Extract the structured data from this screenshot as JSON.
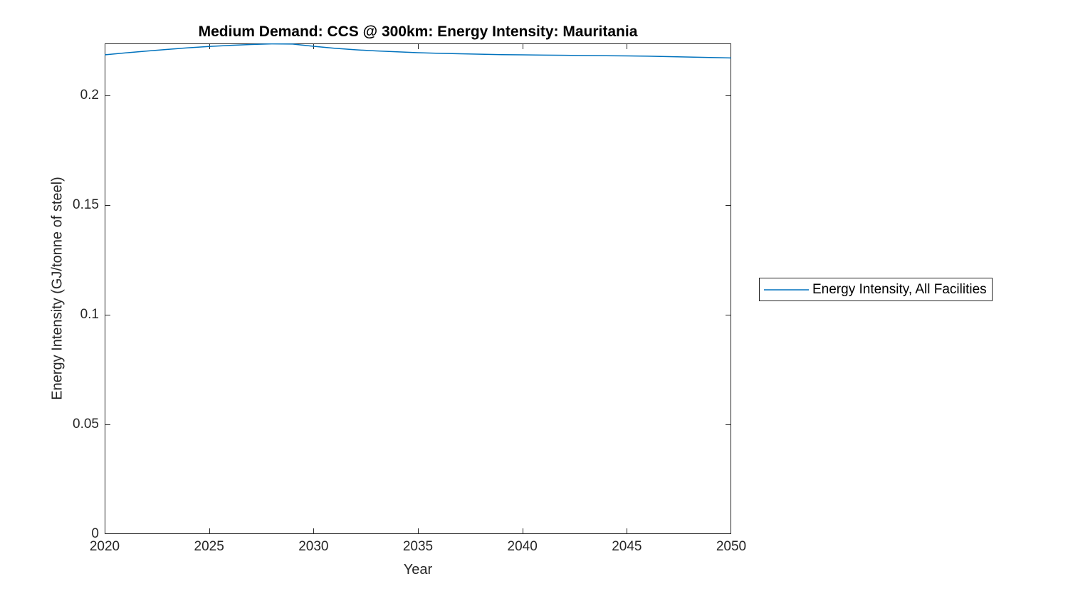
{
  "figure": {
    "background": "#ffffff",
    "axis_color": "#262626",
    "title_color": "#000000"
  },
  "chart_data": {
    "type": "line",
    "title": "Medium Demand: CCS @ 300km: Energy Intensity: Mauritania",
    "xlabel": "Year",
    "ylabel": "Energy Intensity (GJ/tonne of steel)",
    "xlim": [
      2020,
      2050
    ],
    "ylim": [
      0,
      0.2237
    ],
    "grid": false,
    "x_ticks": [
      2020,
      2025,
      2030,
      2035,
      2040,
      2045,
      2050
    ],
    "x_tick_labels": [
      "2020",
      "2025",
      "2030",
      "2035",
      "2040",
      "2045",
      "2050"
    ],
    "y_ticks": [
      0,
      0.05,
      0.1,
      0.15,
      0.2
    ],
    "y_tick_labels": [
      "0",
      "0.05",
      "0.1",
      "0.15",
      "0.2"
    ],
    "legend": {
      "position": "right-outside",
      "entries": [
        "Energy Intensity, All Facilities"
      ]
    },
    "series": [
      {
        "name": "Energy Intensity, All Facilities",
        "color": "#0072BD",
        "x": [
          2020,
          2021,
          2022,
          2023,
          2024,
          2025,
          2026,
          2027,
          2028,
          2029,
          2030,
          2031,
          2032,
          2033,
          2034,
          2035,
          2036,
          2037,
          2038,
          2039,
          2040,
          2041,
          2042,
          2043,
          2044,
          2045,
          2046,
          2047,
          2048,
          2049,
          2050
        ],
        "values": [
          0.2185,
          0.2194,
          0.2202,
          0.221,
          0.2217,
          0.2223,
          0.2228,
          0.2232,
          0.2235,
          0.2234,
          0.2224,
          0.2215,
          0.2208,
          0.2203,
          0.2199,
          0.2195,
          0.2192,
          0.219,
          0.2188,
          0.2186,
          0.2185,
          0.2184,
          0.2183,
          0.2182,
          0.2181,
          0.218,
          0.2179,
          0.2177,
          0.2175,
          0.2173,
          0.2171
        ]
      }
    ]
  }
}
